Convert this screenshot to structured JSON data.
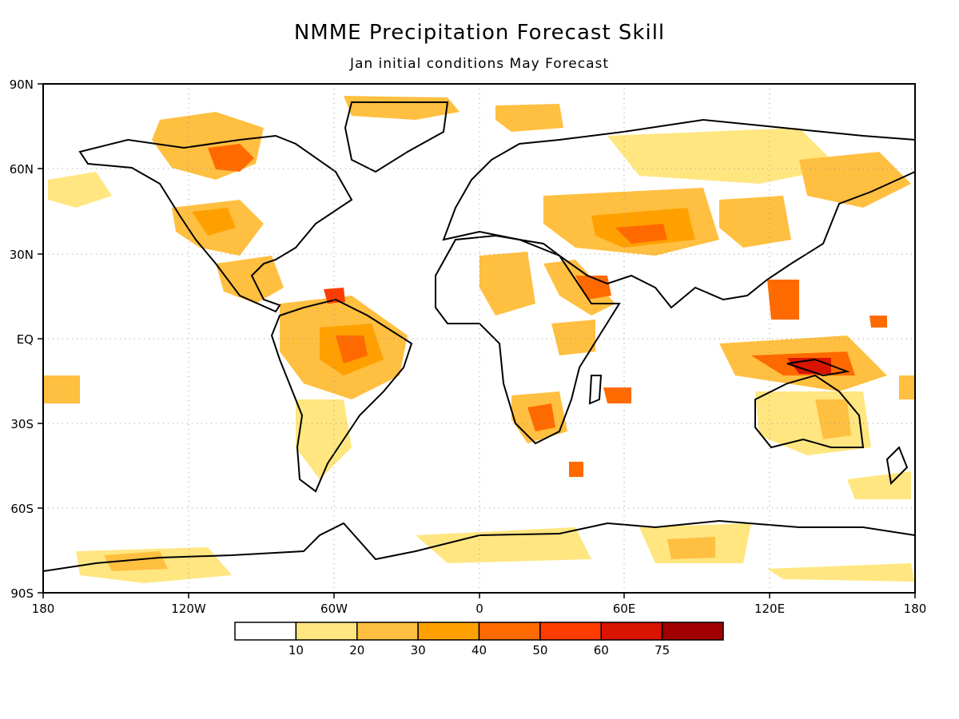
{
  "title": "NMME Precipitation Forecast Skill",
  "subtitle": "Jan initial conditions  May Forecast",
  "axes": {
    "x_ticks": [
      "180",
      "120W",
      "60W",
      "0",
      "60E",
      "120E",
      "180"
    ],
    "y_ticks": [
      "90N",
      "60N",
      "30N",
      "EQ",
      "30S",
      "60S",
      "90S"
    ],
    "lon_range": [
      -180,
      180
    ],
    "lat_range": [
      -90,
      90
    ],
    "grid": "dotted"
  },
  "colorbar": {
    "labels": [
      "10",
      "20",
      "30",
      "40",
      "50",
      "60",
      "75"
    ],
    "colors": [
      "#ffffff",
      "#ffe680",
      "#ffbf40",
      "#ffa000",
      "#ff6a00",
      "#ff3c00",
      "#d91400",
      "#a00000"
    ]
  }
}
